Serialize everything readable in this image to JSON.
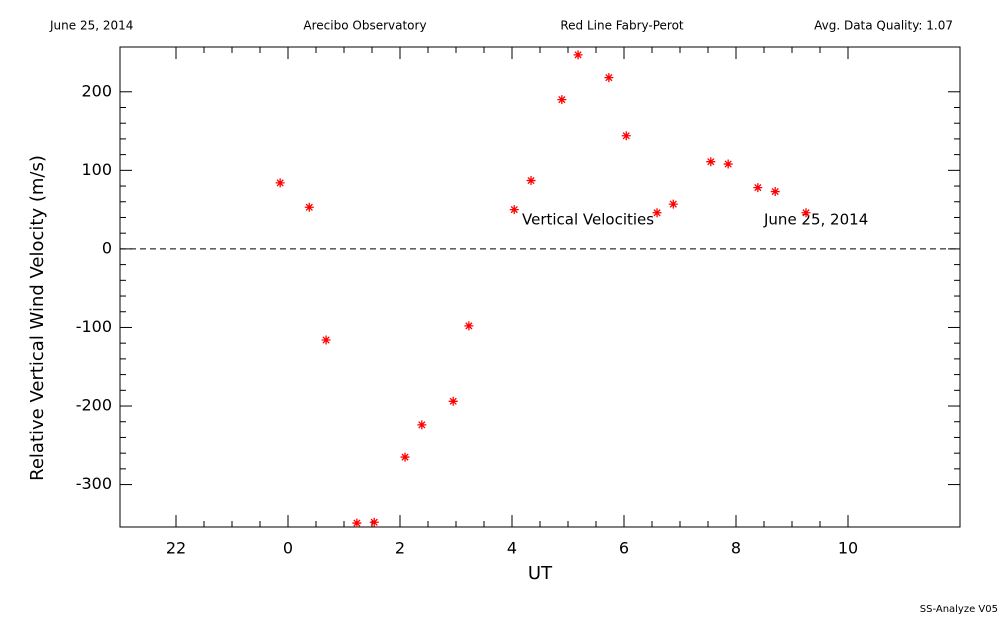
{
  "chart_data": {
    "type": "scatter",
    "header": [
      "June 25, 2014",
      "Arecibo Observatory",
      "Red Line Fabry-Perot",
      "Avg. Data Quality: 1.07"
    ],
    "xlabel": "UT",
    "ylabel": "Relative Vertical Wind Velocity (m/s)",
    "annotations": [
      "Vertical Velocities",
      "June 25, 2014"
    ],
    "footer": "SS-Analyze V05",
    "color": "#ff0000",
    "hline": 0,
    "xlim": [
      -3,
      12
    ],
    "ylim": [
      -354,
      257
    ],
    "xticks": [
      {
        "value": -2,
        "label": "22"
      },
      0,
      2,
      4,
      6,
      8,
      10
    ],
    "yticks": [
      -300,
      -200,
      -100,
      0,
      100,
      200
    ],
    "x": [
      -0.14,
      0.38,
      0.68,
      1.23,
      1.54,
      2.09,
      2.39,
      2.95,
      3.23,
      4.04,
      4.34,
      4.89,
      5.18,
      5.73,
      6.04,
      6.59,
      6.88,
      7.55,
      7.86,
      8.39,
      8.7,
      9.25
    ],
    "values": [
      84,
      53,
      -116,
      -349,
      -348,
      -265,
      -224,
      -194,
      -98,
      50,
      87,
      190,
      247,
      218,
      144,
      46,
      57,
      111,
      108,
      78,
      73,
      46
    ]
  }
}
